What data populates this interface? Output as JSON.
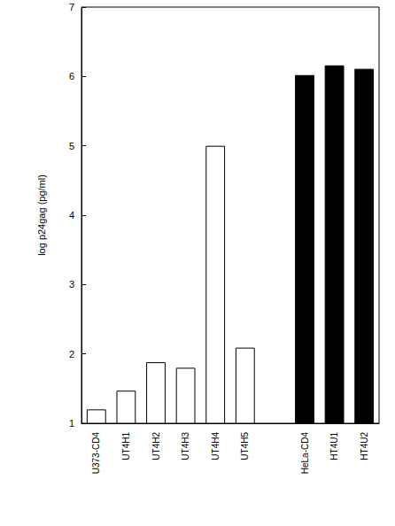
{
  "chart_data": {
    "type": "bar",
    "y_label": "log p24gag (pg/ml)",
    "categories": [
      "U373-CD4",
      "UT4H1",
      "UT4H2",
      "UT4H3",
      "UT4H4",
      "UT4H5",
      null,
      "HeLa-CD4",
      "HT4U1",
      "HT4U2"
    ],
    "values": [
      1.2,
      1.47,
      1.88,
      1.8,
      5.0,
      2.09,
      null,
      6.02,
      6.16,
      6.11
    ],
    "colors": [
      "#ffffff",
      "#ffffff",
      "#ffffff",
      "#ffffff",
      "#ffffff",
      "#ffffff",
      null,
      "#000000",
      "#000000",
      "#000000"
    ],
    "ylim": [
      1,
      7
    ],
    "yticks": [
      1,
      2,
      3,
      4,
      5,
      6,
      7
    ],
    "grid": false
  }
}
